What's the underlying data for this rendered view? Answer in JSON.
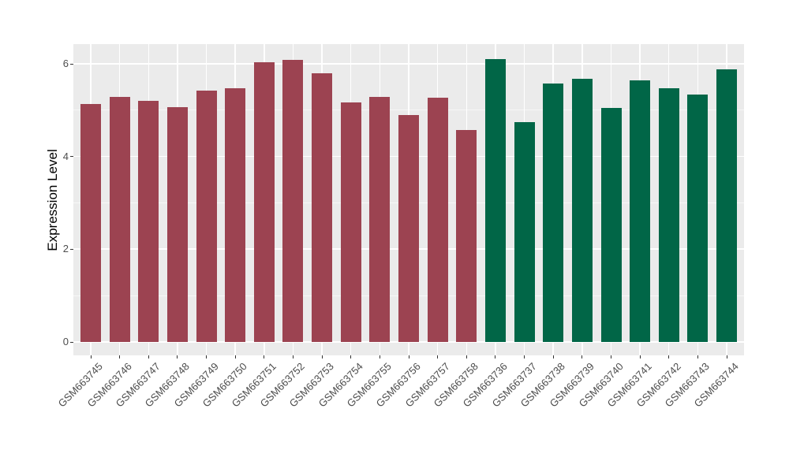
{
  "figure": {
    "background": "#ffffff"
  },
  "chart_data": {
    "type": "bar",
    "title": "",
    "xlabel": "",
    "ylabel": "Expression Level",
    "ylim": [
      -0.31,
      6.42
    ],
    "yticks": [
      0,
      2,
      4,
      6
    ],
    "yminorticks": [
      1,
      3,
      5
    ],
    "grid": "on",
    "legend": "none",
    "panel_background": "#ebebeb",
    "gridline_color": "#ffffff",
    "axis_text_color": "#4d4d4d",
    "axis_title_color": "#000000",
    "tick_mark_color": "#333333",
    "series": [
      {
        "name": "GSM663745-GSM663758",
        "color": "#9c4351",
        "categories": [
          "GSM663745",
          "GSM663746",
          "GSM663747",
          "GSM663748",
          "GSM663749",
          "GSM663750",
          "GSM663751",
          "GSM663752",
          "GSM663753",
          "GSM663754",
          "GSM663755",
          "GSM663756",
          "GSM663757",
          "GSM663758"
        ],
        "values": [
          5.13,
          5.29,
          5.21,
          5.07,
          5.42,
          5.47,
          6.04,
          6.08,
          5.79,
          5.16,
          5.28,
          4.9,
          5.27,
          4.57
        ]
      },
      {
        "name": "GSM663736-GSM663744",
        "color": "#016647",
        "categories": [
          "GSM663736",
          "GSM663737",
          "GSM663738",
          "GSM663739",
          "GSM663740",
          "GSM663741",
          "GSM663742",
          "GSM663743",
          "GSM663744"
        ],
        "values": [
          6.1,
          4.74,
          5.57,
          5.67,
          5.05,
          5.64,
          5.48,
          5.33,
          5.88
        ]
      }
    ]
  }
}
